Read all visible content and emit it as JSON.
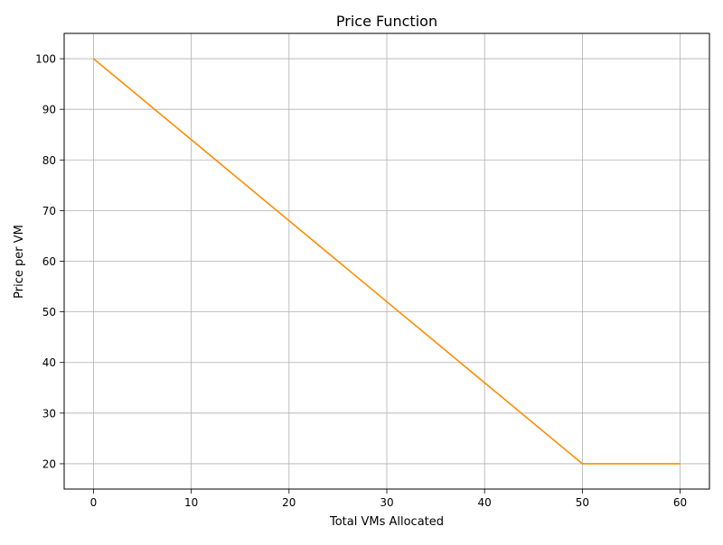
{
  "chart_data": {
    "type": "line",
    "title": "Price Function",
    "xlabel": "Total VMs Allocated",
    "ylabel": "Price per VM",
    "xlim": [
      -3,
      63
    ],
    "ylim": [
      15,
      105
    ],
    "xticks": [
      0,
      10,
      20,
      30,
      40,
      50,
      60
    ],
    "yticks": [
      20,
      30,
      40,
      50,
      60,
      70,
      80,
      90,
      100
    ],
    "grid": true,
    "series": [
      {
        "color": "#ff8c00",
        "x": [
          0,
          50,
          60
        ],
        "y": [
          100,
          20,
          20
        ]
      }
    ]
  }
}
